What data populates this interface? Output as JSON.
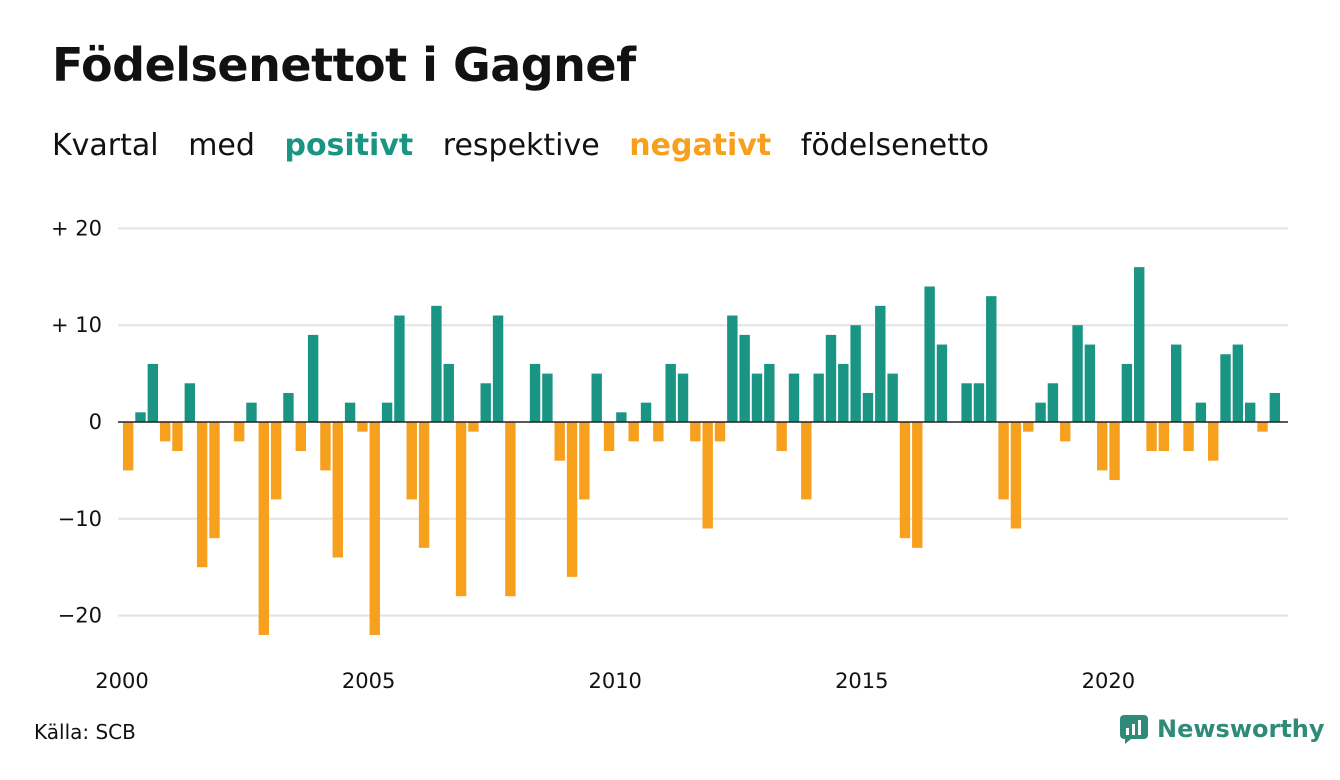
{
  "title": "Födelsenettot i Gagnef",
  "subtitle": {
    "w1": "Kvartal",
    "w2": "med",
    "positive": "positivt",
    "w3": "respektive",
    "negative": "negativt",
    "w4": "födelsenetto"
  },
  "colors": {
    "positive": "#1a9483",
    "negative": "#f7a01e",
    "grid": "#e3e3e3",
    "text": "#111111"
  },
  "source": "Källa: SCB",
  "brand": "Newsworthy",
  "chart_data": {
    "type": "bar",
    "title": "Födelsenettot i Gagnef",
    "x_unit": "quarter",
    "start_period": "2000 Q1",
    "xticks": [
      2000,
      2005,
      2010,
      2015,
      2020
    ],
    "ylim": [
      -24,
      21
    ],
    "yticks": [
      20,
      10,
      0,
      -10,
      -20
    ],
    "ytick_labels": [
      "+ 20",
      "+ 10",
      "0",
      "−10",
      "−20"
    ],
    "grid": "horizontal",
    "values": [
      -5,
      1,
      6,
      -2,
      -3,
      4,
      -15,
      -12,
      0,
      -2,
      2,
      -22,
      -8,
      3,
      -3,
      9,
      -5,
      -14,
      2,
      -1,
      -22,
      2,
      11,
      -8,
      -13,
      12,
      6,
      -18,
      -1,
      4,
      11,
      -18,
      0,
      6,
      5,
      -4,
      -16,
      -8,
      5,
      -3,
      1,
      -2,
      2,
      -2,
      6,
      5,
      -2,
      -11,
      -2,
      11,
      9,
      5,
      6,
      -3,
      5,
      -8,
      5,
      9,
      6,
      10,
      3,
      12,
      5,
      -12,
      -13,
      14,
      8,
      0,
      4,
      4,
      13,
      -8,
      -11,
      -1,
      2,
      4,
      -2,
      10,
      8,
      -5,
      -6,
      6,
      16,
      -3,
      -3,
      8,
      -3,
      2,
      -4,
      7,
      8,
      2,
      -1,
      3
    ]
  }
}
